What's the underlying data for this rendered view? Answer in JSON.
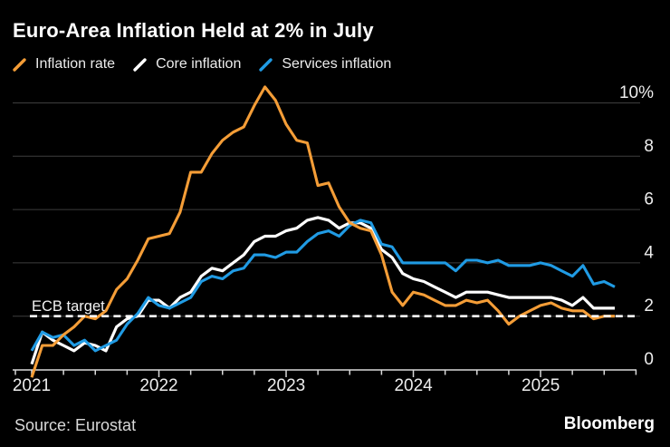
{
  "title": "Euro-Area Inflation Held at 2% in July",
  "legend": {
    "items": [
      {
        "label": "Inflation rate",
        "color": "#F49D37"
      },
      {
        "label": "Core inflation",
        "color": "#FFFFFF"
      },
      {
        "label": "Services inflation",
        "color": "#209BE4"
      }
    ]
  },
  "footer": {
    "source": "Source: Eurostat",
    "brand": "Bloomberg"
  },
  "chart_data": {
    "type": "line",
    "title": "Euro-Area Inflation Held at 2% in July",
    "x_unit": "month",
    "x_start": "Dec 2020",
    "x_end": "Jul 2025",
    "x_tick_labels": [
      "2021",
      "2022",
      "2023",
      "2024",
      "2025"
    ],
    "y_ticks": [
      0,
      2,
      4,
      6,
      8,
      10
    ],
    "y_tick_labels": [
      "0",
      "2",
      "4",
      "6",
      "8",
      "10%"
    ],
    "ylim": [
      -0.5,
      10.6
    ],
    "grid": true,
    "legend_position": "top",
    "target_line": {
      "label": "ECB target",
      "value": 2,
      "style": "dashed",
      "color": "#FFFFFF"
    },
    "series": [
      {
        "name": "Inflation rate",
        "color": "#F49D37",
        "values": [
          -0.3,
          0.9,
          0.9,
          1.3,
          1.6,
          2.0,
          1.9,
          2.2,
          3.0,
          3.4,
          4.1,
          4.9,
          5.0,
          5.1,
          5.9,
          7.4,
          7.4,
          8.1,
          8.6,
          8.9,
          9.1,
          9.9,
          10.6,
          10.1,
          9.2,
          8.6,
          8.5,
          6.9,
          7.0,
          6.1,
          5.5,
          5.3,
          5.2,
          4.3,
          2.9,
          2.4,
          2.9,
          2.8,
          2.6,
          2.4,
          2.4,
          2.6,
          2.5,
          2.6,
          2.2,
          1.7,
          2.0,
          2.2,
          2.4,
          2.5,
          2.3,
          2.2,
          2.2,
          1.9,
          2.0,
          2.0
        ]
      },
      {
        "name": "Core inflation",
        "color": "#FFFFFF",
        "values": [
          0.2,
          1.4,
          1.1,
          0.9,
          0.7,
          1.0,
          0.9,
          0.7,
          1.6,
          1.9,
          2.0,
          2.6,
          2.6,
          2.3,
          2.7,
          2.9,
          3.5,
          3.8,
          3.7,
          4.0,
          4.3,
          4.8,
          5.0,
          5.0,
          5.2,
          5.3,
          5.6,
          5.7,
          5.6,
          5.3,
          5.5,
          5.5,
          5.3,
          4.5,
          4.2,
          3.6,
          3.4,
          3.3,
          3.1,
          2.9,
          2.7,
          2.9,
          2.9,
          2.9,
          2.8,
          2.7,
          2.7,
          2.7,
          2.7,
          2.7,
          2.6,
          2.4,
          2.7,
          2.3,
          2.3,
          2.3
        ]
      },
      {
        "name": "Services inflation",
        "color": "#209BE4",
        "values": [
          0.7,
          1.4,
          1.2,
          1.3,
          0.9,
          1.1,
          0.7,
          0.9,
          1.1,
          1.7,
          2.1,
          2.7,
          2.4,
          2.3,
          2.5,
          2.7,
          3.3,
          3.5,
          3.4,
          3.7,
          3.8,
          4.3,
          4.3,
          4.2,
          4.4,
          4.4,
          4.8,
          5.1,
          5.2,
          5.0,
          5.4,
          5.6,
          5.5,
          4.7,
          4.6,
          4.0,
          4.0,
          4.0,
          4.0,
          4.0,
          3.7,
          4.1,
          4.1,
          4.0,
          4.1,
          3.9,
          3.9,
          3.9,
          4.0,
          3.9,
          3.7,
          3.5,
          3.9,
          3.2,
          3.3,
          3.1
        ]
      }
    ]
  }
}
